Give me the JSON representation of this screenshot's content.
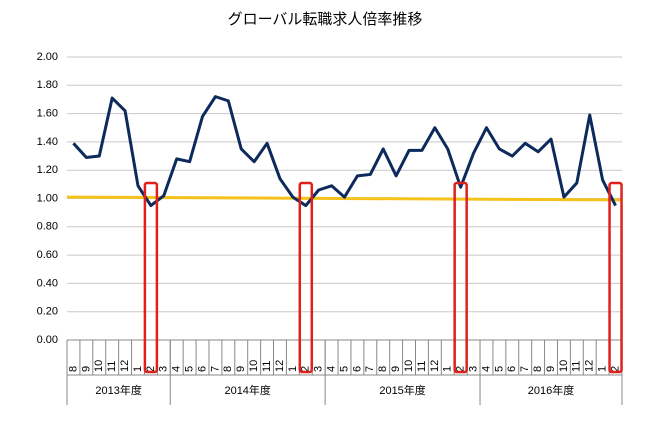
{
  "chart_data": {
    "type": "line",
    "title": "グローバル転職求人倍率推移",
    "categories": [
      "8",
      "9",
      "10",
      "11",
      "12",
      "1",
      "2",
      "3",
      "4",
      "5",
      "6",
      "7",
      "8",
      "9",
      "10",
      "11",
      "12",
      "1",
      "2",
      "3",
      "4",
      "5",
      "6",
      "7",
      "8",
      "9",
      "10",
      "11",
      "12",
      "1",
      "2",
      "3",
      "4",
      "5",
      "6",
      "7",
      "8",
      "9",
      "10",
      "11",
      "12",
      "1",
      "2"
    ],
    "groups": [
      {
        "label": "2013年度",
        "count": 8
      },
      {
        "label": "2014年度",
        "count": 12
      },
      {
        "label": "2015年度",
        "count": 12
      },
      {
        "label": "2016年度",
        "count": 11
      }
    ],
    "series": [
      {
        "color": "#0d2a5c",
        "values": [
          1.39,
          1.29,
          1.3,
          1.71,
          1.62,
          1.09,
          0.95,
          1.02,
          1.28,
          1.26,
          1.58,
          1.72,
          1.69,
          1.35,
          1.26,
          1.39,
          1.14,
          1.01,
          0.95,
          1.06,
          1.09,
          1.01,
          1.16,
          1.17,
          1.35,
          1.16,
          1.34,
          1.34,
          1.5,
          1.35,
          1.08,
          1.32,
          1.5,
          1.35,
          1.3,
          1.39,
          1.33,
          1.42,
          1.01,
          1.11,
          1.59,
          1.13,
          0.95
        ]
      }
    ],
    "trend": {
      "color": "#f5c21b",
      "values": [
        1.01,
        0.99
      ]
    },
    "highlight_indices": [
      6,
      18,
      30,
      42
    ],
    "highlight_color": "#e0201b",
    "ylim": [
      0,
      2
    ],
    "yticks": [
      {
        "value": 0,
        "label": "0.00"
      },
      {
        "value": 0.2,
        "label": "0.20"
      },
      {
        "value": 0.4,
        "label": "0.40"
      },
      {
        "value": 0.6,
        "label": "0.60"
      },
      {
        "value": 0.8,
        "label": "0.80"
      },
      {
        "value": 1,
        "label": "1.00"
      },
      {
        "value": 1.2,
        "label": "1.20"
      },
      {
        "value": 1.4,
        "label": "1.40"
      },
      {
        "value": 1.6,
        "label": "1.60"
      },
      {
        "value": 1.8,
        "label": "1.80"
      },
      {
        "value": 2,
        "label": "2.00"
      }
    ],
    "grid": true
  }
}
